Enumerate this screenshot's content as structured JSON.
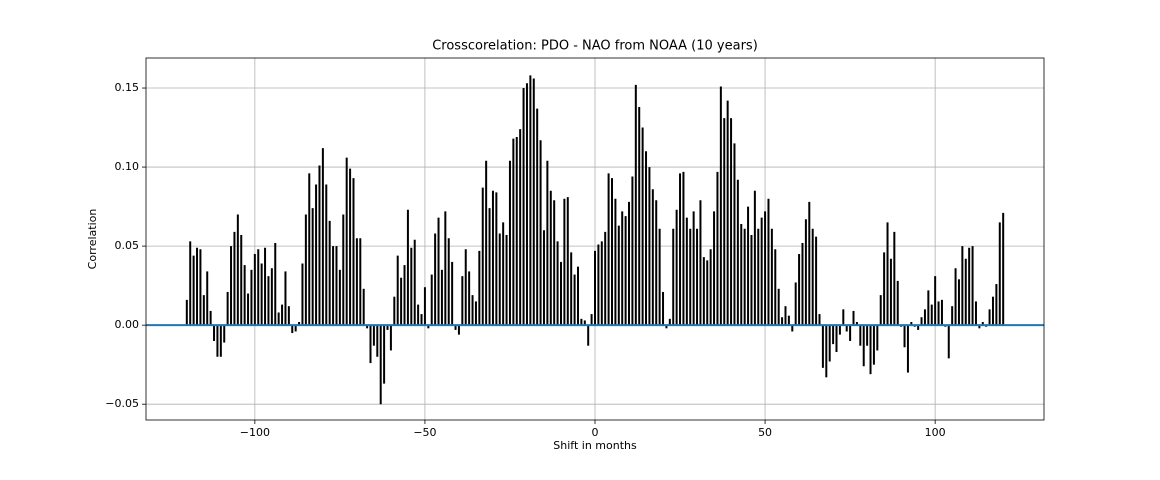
{
  "chart_data": {
    "type": "stem",
    "title": "Crosscorelation: PDO - NAO from NOAA (10 years)",
    "xlabel": "Shift in months",
    "ylabel": "Correlation",
    "color": "#000000",
    "zero_line_color": "#1f77b4",
    "grid": true,
    "xlim": [
      -132,
      132
    ],
    "ylim": [
      -0.06,
      0.169
    ],
    "xticks": [
      {
        "value": -100,
        "label": "−100"
      },
      {
        "value": -50,
        "label": "−50"
      },
      0,
      50,
      100
    ],
    "yticks": [
      {
        "value": -0.05,
        "label": "−0.05"
      },
      {
        "value": 0,
        "label": "0.00"
      },
      0.05,
      {
        "value": 0.1,
        "label": "0.10"
      },
      0.15
    ],
    "x": [
      -120,
      -119,
      -118,
      -117,
      -116,
      -115,
      -114,
      -113,
      -112,
      -111,
      -110,
      -109,
      -108,
      -107,
      -106,
      -105,
      -104,
      -103,
      -102,
      -101,
      -100,
      -99,
      -98,
      -97,
      -96,
      -95,
      -94,
      -93,
      -92,
      -91,
      -90,
      -89,
      -88,
      -87,
      -86,
      -85,
      -84,
      -83,
      -82,
      -81,
      -80,
      -79,
      -78,
      -77,
      -76,
      -75,
      -74,
      -73,
      -72,
      -71,
      -70,
      -69,
      -68,
      -67,
      -66,
      -65,
      -64,
      -63,
      -62,
      -61,
      -60,
      -59,
      -58,
      -57,
      -56,
      -55,
      -54,
      -53,
      -52,
      -51,
      -50,
      -49,
      -48,
      -47,
      -46,
      -45,
      -44,
      -43,
      -42,
      -41,
      -40,
      -39,
      -38,
      -37,
      -36,
      -35,
      -34,
      -33,
      -32,
      -31,
      -30,
      -29,
      -28,
      -27,
      -26,
      -25,
      -24,
      -23,
      -22,
      -21,
      -20,
      -19,
      -18,
      -17,
      -16,
      -15,
      -14,
      -13,
      -12,
      -11,
      -10,
      -9,
      -8,
      -7,
      -6,
      -5,
      -4,
      -3,
      -2,
      -1,
      0,
      1,
      2,
      3,
      4,
      5,
      6,
      7,
      8,
      9,
      10,
      11,
      12,
      13,
      14,
      15,
      16,
      17,
      18,
      19,
      20,
      21,
      22,
      23,
      24,
      25,
      26,
      27,
      28,
      29,
      30,
      31,
      32,
      33,
      34,
      35,
      36,
      37,
      38,
      39,
      40,
      41,
      42,
      43,
      44,
      45,
      46,
      47,
      48,
      49,
      50,
      51,
      52,
      53,
      54,
      55,
      56,
      57,
      58,
      59,
      60,
      61,
      62,
      63,
      64,
      65,
      66,
      67,
      68,
      69,
      70,
      71,
      72,
      73,
      74,
      75,
      76,
      77,
      78,
      79,
      80,
      81,
      82,
      83,
      84,
      85,
      86,
      87,
      88,
      89,
      90,
      91,
      92,
      93,
      94,
      95,
      96,
      97,
      98,
      99,
      100,
      101,
      102,
      103,
      104,
      105,
      106,
      107,
      108,
      109,
      110,
      111,
      112,
      113,
      114,
      115,
      116,
      117,
      118,
      119,
      120
    ],
    "values": [
      0.016,
      0.053,
      0.044,
      0.049,
      0.048,
      0.019,
      0.034,
      0.009,
      -0.01,
      -0.02,
      -0.02,
      -0.011,
      0.021,
      0.05,
      0.059,
      0.07,
      0.057,
      0.038,
      0.02,
      0.035,
      0.045,
      0.048,
      0.039,
      0.049,
      0.031,
      0.036,
      0.052,
      0.008,
      0.013,
      0.034,
      0.012,
      -0.005,
      -0.004,
      0.002,
      0.039,
      0.07,
      0.096,
      0.074,
      0.089,
      0.101,
      0.112,
      0.089,
      0.066,
      0.05,
      0.05,
      0.035,
      0.07,
      0.106,
      0.099,
      0.093,
      0.055,
      0.055,
      0.023,
      -0.002,
      -0.024,
      -0.013,
      -0.02,
      -0.05,
      -0.037,
      -0.003,
      -0.016,
      0.018,
      0.044,
      0.03,
      0.038,
      0.073,
      0.049,
      0.054,
      0.013,
      0.007,
      0.024,
      -0.002,
      0.032,
      0.058,
      0.068,
      0.035,
      0.072,
      0.055,
      0.04,
      -0.003,
      -0.006,
      0.031,
      0.048,
      0.034,
      0.019,
      0.015,
      0.047,
      0.087,
      0.104,
      0.074,
      0.085,
      0.084,
      0.058,
      0.065,
      0.057,
      0.104,
      0.118,
      0.119,
      0.124,
      0.15,
      0.153,
      0.158,
      0.156,
      0.137,
      0.117,
      0.06,
      0.104,
      0.085,
      0.079,
      0.053,
      0.04,
      0.08,
      0.081,
      0.046,
      0.032,
      0.037,
      0.004,
      0.003,
      -0.013,
      0.007,
      0.047,
      0.051,
      0.053,
      0.059,
      0.096,
      0.093,
      0.08,
      0.063,
      0.072,
      0.069,
      0.078,
      0.094,
      0.152,
      0.138,
      0.125,
      0.11,
      0.1,
      0.086,
      0.079,
      0.061,
      0.021,
      -0.002,
      0.004,
      0.061,
      0.073,
      0.096,
      0.097,
      0.068,
      0.061,
      0.072,
      0.061,
      0.079,
      0.043,
      0.041,
      0.048,
      0.072,
      0.097,
      0.151,
      0.131,
      0.142,
      0.131,
      0.115,
      0.092,
      0.064,
      0.061,
      0.075,
      0.057,
      0.085,
      0.061,
      0.068,
      0.072,
      0.08,
      0.061,
      0.048,
      0.023,
      0.005,
      0.012,
      0.006,
      -0.004,
      0.027,
      0.045,
      0.052,
      0.067,
      0.078,
      0.061,
      0.056,
      0.007,
      -0.027,
      -0.033,
      -0.023,
      -0.012,
      -0.017,
      -0.006,
      0.01,
      -0.004,
      -0.01,
      0.009,
      0.002,
      -0.013,
      -0.026,
      -0.013,
      -0.031,
      -0.025,
      -0.016,
      0.019,
      0.046,
      0.065,
      0.042,
      0.059,
      0.028,
      -0.001,
      -0.014,
      -0.03,
      0.002,
      -0.001,
      -0.003,
      0.005,
      0.01,
      0.022,
      0.013,
      0.031,
      0.015,
      0.016,
      -0.001,
      -0.021,
      0.012,
      0.036,
      0.029,
      0.05,
      0.042,
      0.049,
      0.05,
      0.015,
      -0.002,
      0.002,
      -0.001,
      0.01,
      0.018,
      0.026,
      0.065,
      0.071
    ]
  }
}
